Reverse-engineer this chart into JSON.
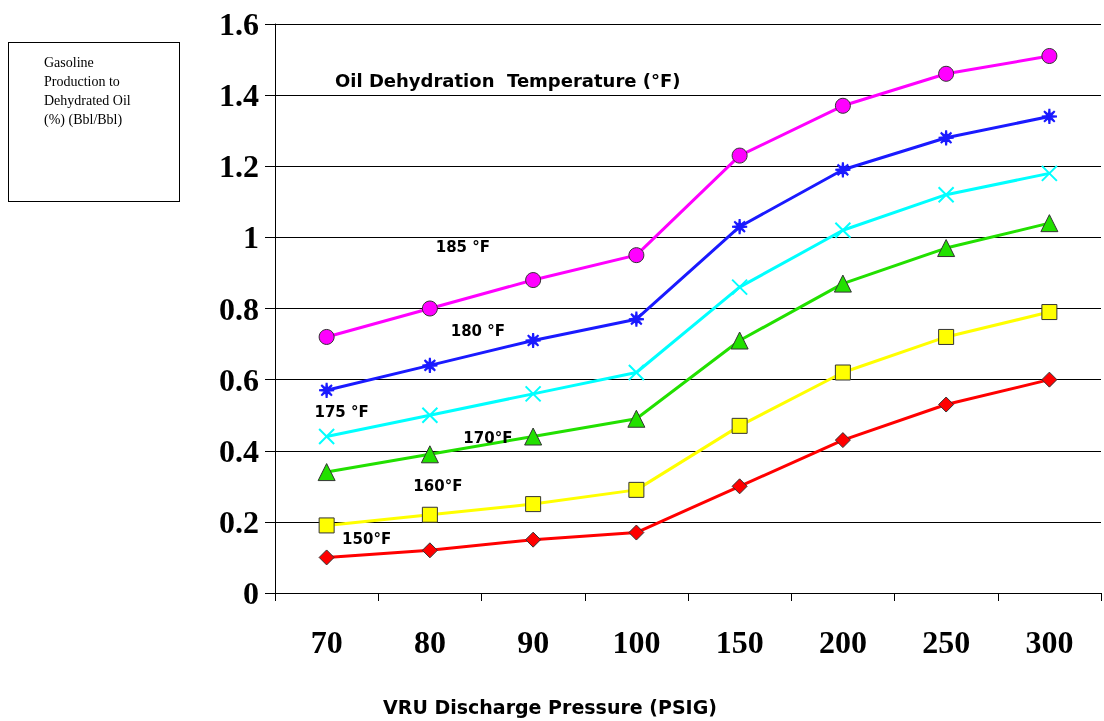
{
  "chart_data": {
    "type": "line",
    "title": "Oil Dehydration  Temperature (°F)",
    "xlabel": "VRU Discharge Pressure (PSIG)",
    "annotations": [
      "Gasoline Production to Dehydrated Oil (%) (Bbl/Bbl)"
    ],
    "categories": [
      "70",
      "80",
      "90",
      "100",
      "150",
      "200",
      "250",
      "300"
    ],
    "series": [
      {
        "name": "185 °F",
        "color": "#ff00ff",
        "marker": "circle",
        "values": [
          0.72,
          0.8,
          0.88,
          0.95,
          1.23,
          1.37,
          1.46,
          1.51
        ]
      },
      {
        "name": "180 °F",
        "color": "#1a1aff",
        "marker": "star",
        "values": [
          0.57,
          0.64,
          0.71,
          0.77,
          1.03,
          1.19,
          1.28,
          1.34
        ]
      },
      {
        "name": "175 °F",
        "color": "#00ffff",
        "marker": "cross",
        "values": [
          0.44,
          0.5,
          0.56,
          0.62,
          0.86,
          1.02,
          1.12,
          1.18
        ]
      },
      {
        "name": "170°F",
        "color": "#22e000",
        "marker": "triangle",
        "values": [
          0.34,
          0.39,
          0.44,
          0.49,
          0.71,
          0.87,
          0.97,
          1.04
        ]
      },
      {
        "name": "160°F",
        "color": "#ffff00",
        "marker": "square",
        "values": [
          0.19,
          0.22,
          0.25,
          0.29,
          0.47,
          0.62,
          0.72,
          0.79
        ]
      },
      {
        "name": "150°F",
        "color": "#ff0000",
        "marker": "diamond",
        "values": [
          0.1,
          0.12,
          0.15,
          0.17,
          0.3,
          0.43,
          0.53,
          0.6
        ]
      }
    ],
    "ylim": [
      0,
      1.6
    ],
    "yticks": [
      0,
      0.2,
      0.4,
      0.6,
      0.8,
      1,
      1.2,
      1.4,
      1.6
    ],
    "grid": "y",
    "legend": false,
    "line_style": "solid"
  }
}
